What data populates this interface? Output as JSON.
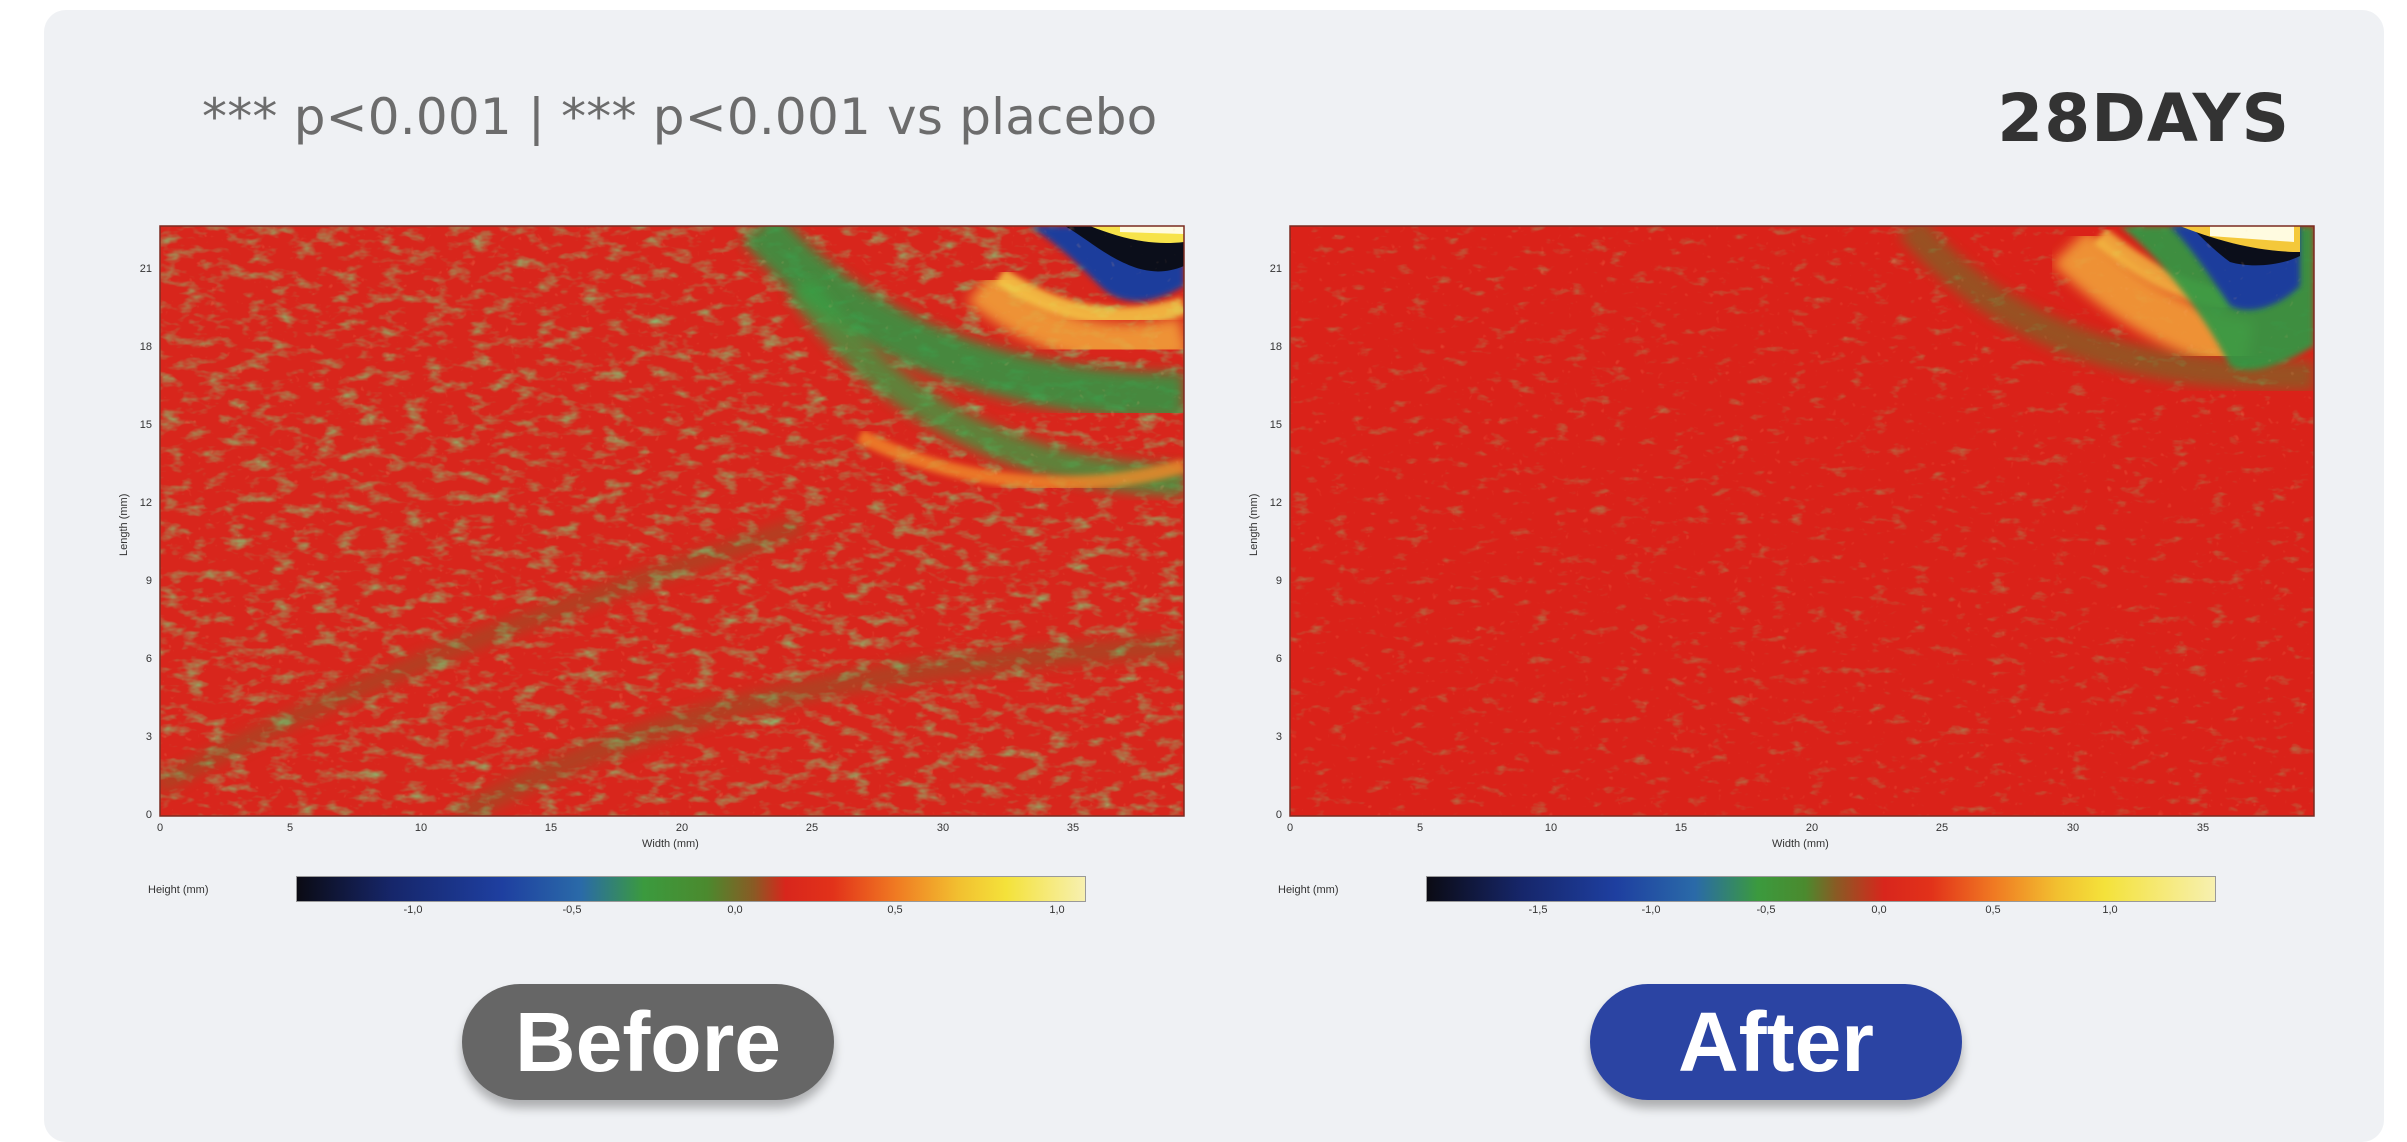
{
  "header": {
    "subtitle": "*** p<0.001 | *** p<0.001 vs placebo",
    "duration": "28DAYS"
  },
  "panels": [
    {
      "id": "before",
      "label": "Before",
      "label_color": "#666666",
      "y_axis_title": "Length (mm)",
      "x_axis_title": "Width (mm)",
      "y_ticks": [
        "0",
        "3",
        "6",
        "9",
        "12",
        "15",
        "18",
        "21"
      ],
      "x_ticks": [
        "0",
        "5",
        "10",
        "15",
        "20",
        "25",
        "30",
        "35"
      ],
      "colorbar_title": "Height (mm)",
      "colorbar_ticks": [
        "-1,0",
        "-0,5",
        "0,0",
        "0,5",
        "1,0"
      ]
    },
    {
      "id": "after",
      "label": "After",
      "label_color": "#2b44a3",
      "y_axis_title": "Length (mm)",
      "x_axis_title": "Width (mm)",
      "y_ticks": [
        "0",
        "3",
        "6",
        "9",
        "12",
        "15",
        "18",
        "21"
      ],
      "x_ticks": [
        "0",
        "5",
        "10",
        "15",
        "20",
        "25",
        "30",
        "35"
      ],
      "colorbar_title": "Height (mm)",
      "colorbar_ticks": [
        "-1,5",
        "-1,0",
        "-0,5",
        "0,0",
        "0,5",
        "1,0"
      ]
    }
  ],
  "colors": {
    "card_background": "#eff1f4",
    "heatmap_base": "#d8261c",
    "heatmap_green": "#3a9a3a",
    "heatmap_blue": "#1e3fa0",
    "heatmap_yellow": "#f4e23a"
  }
}
